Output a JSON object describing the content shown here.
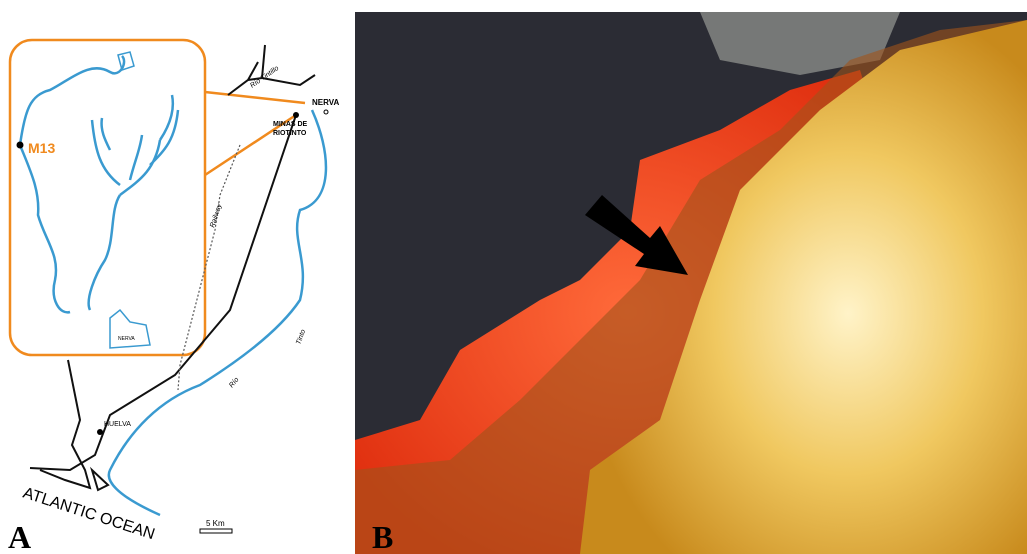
{
  "panel_a": {
    "label": "A",
    "inset": {
      "site": "M13",
      "town": "NERVA"
    },
    "places": {
      "nerva": "NERVA",
      "minas": [
        "MINAS DE",
        "RIOTINTO"
      ],
      "huelva": "HUELVA"
    },
    "rivers": {
      "tintillo": "Río Tintillo",
      "tinto_upper": "Tinto",
      "tinto_lower": "Río"
    },
    "railway": "Railway",
    "ocean": "ATLANTIC OCEAN",
    "scale": "5 Km"
  },
  "panel_b": {
    "label": "B"
  }
}
